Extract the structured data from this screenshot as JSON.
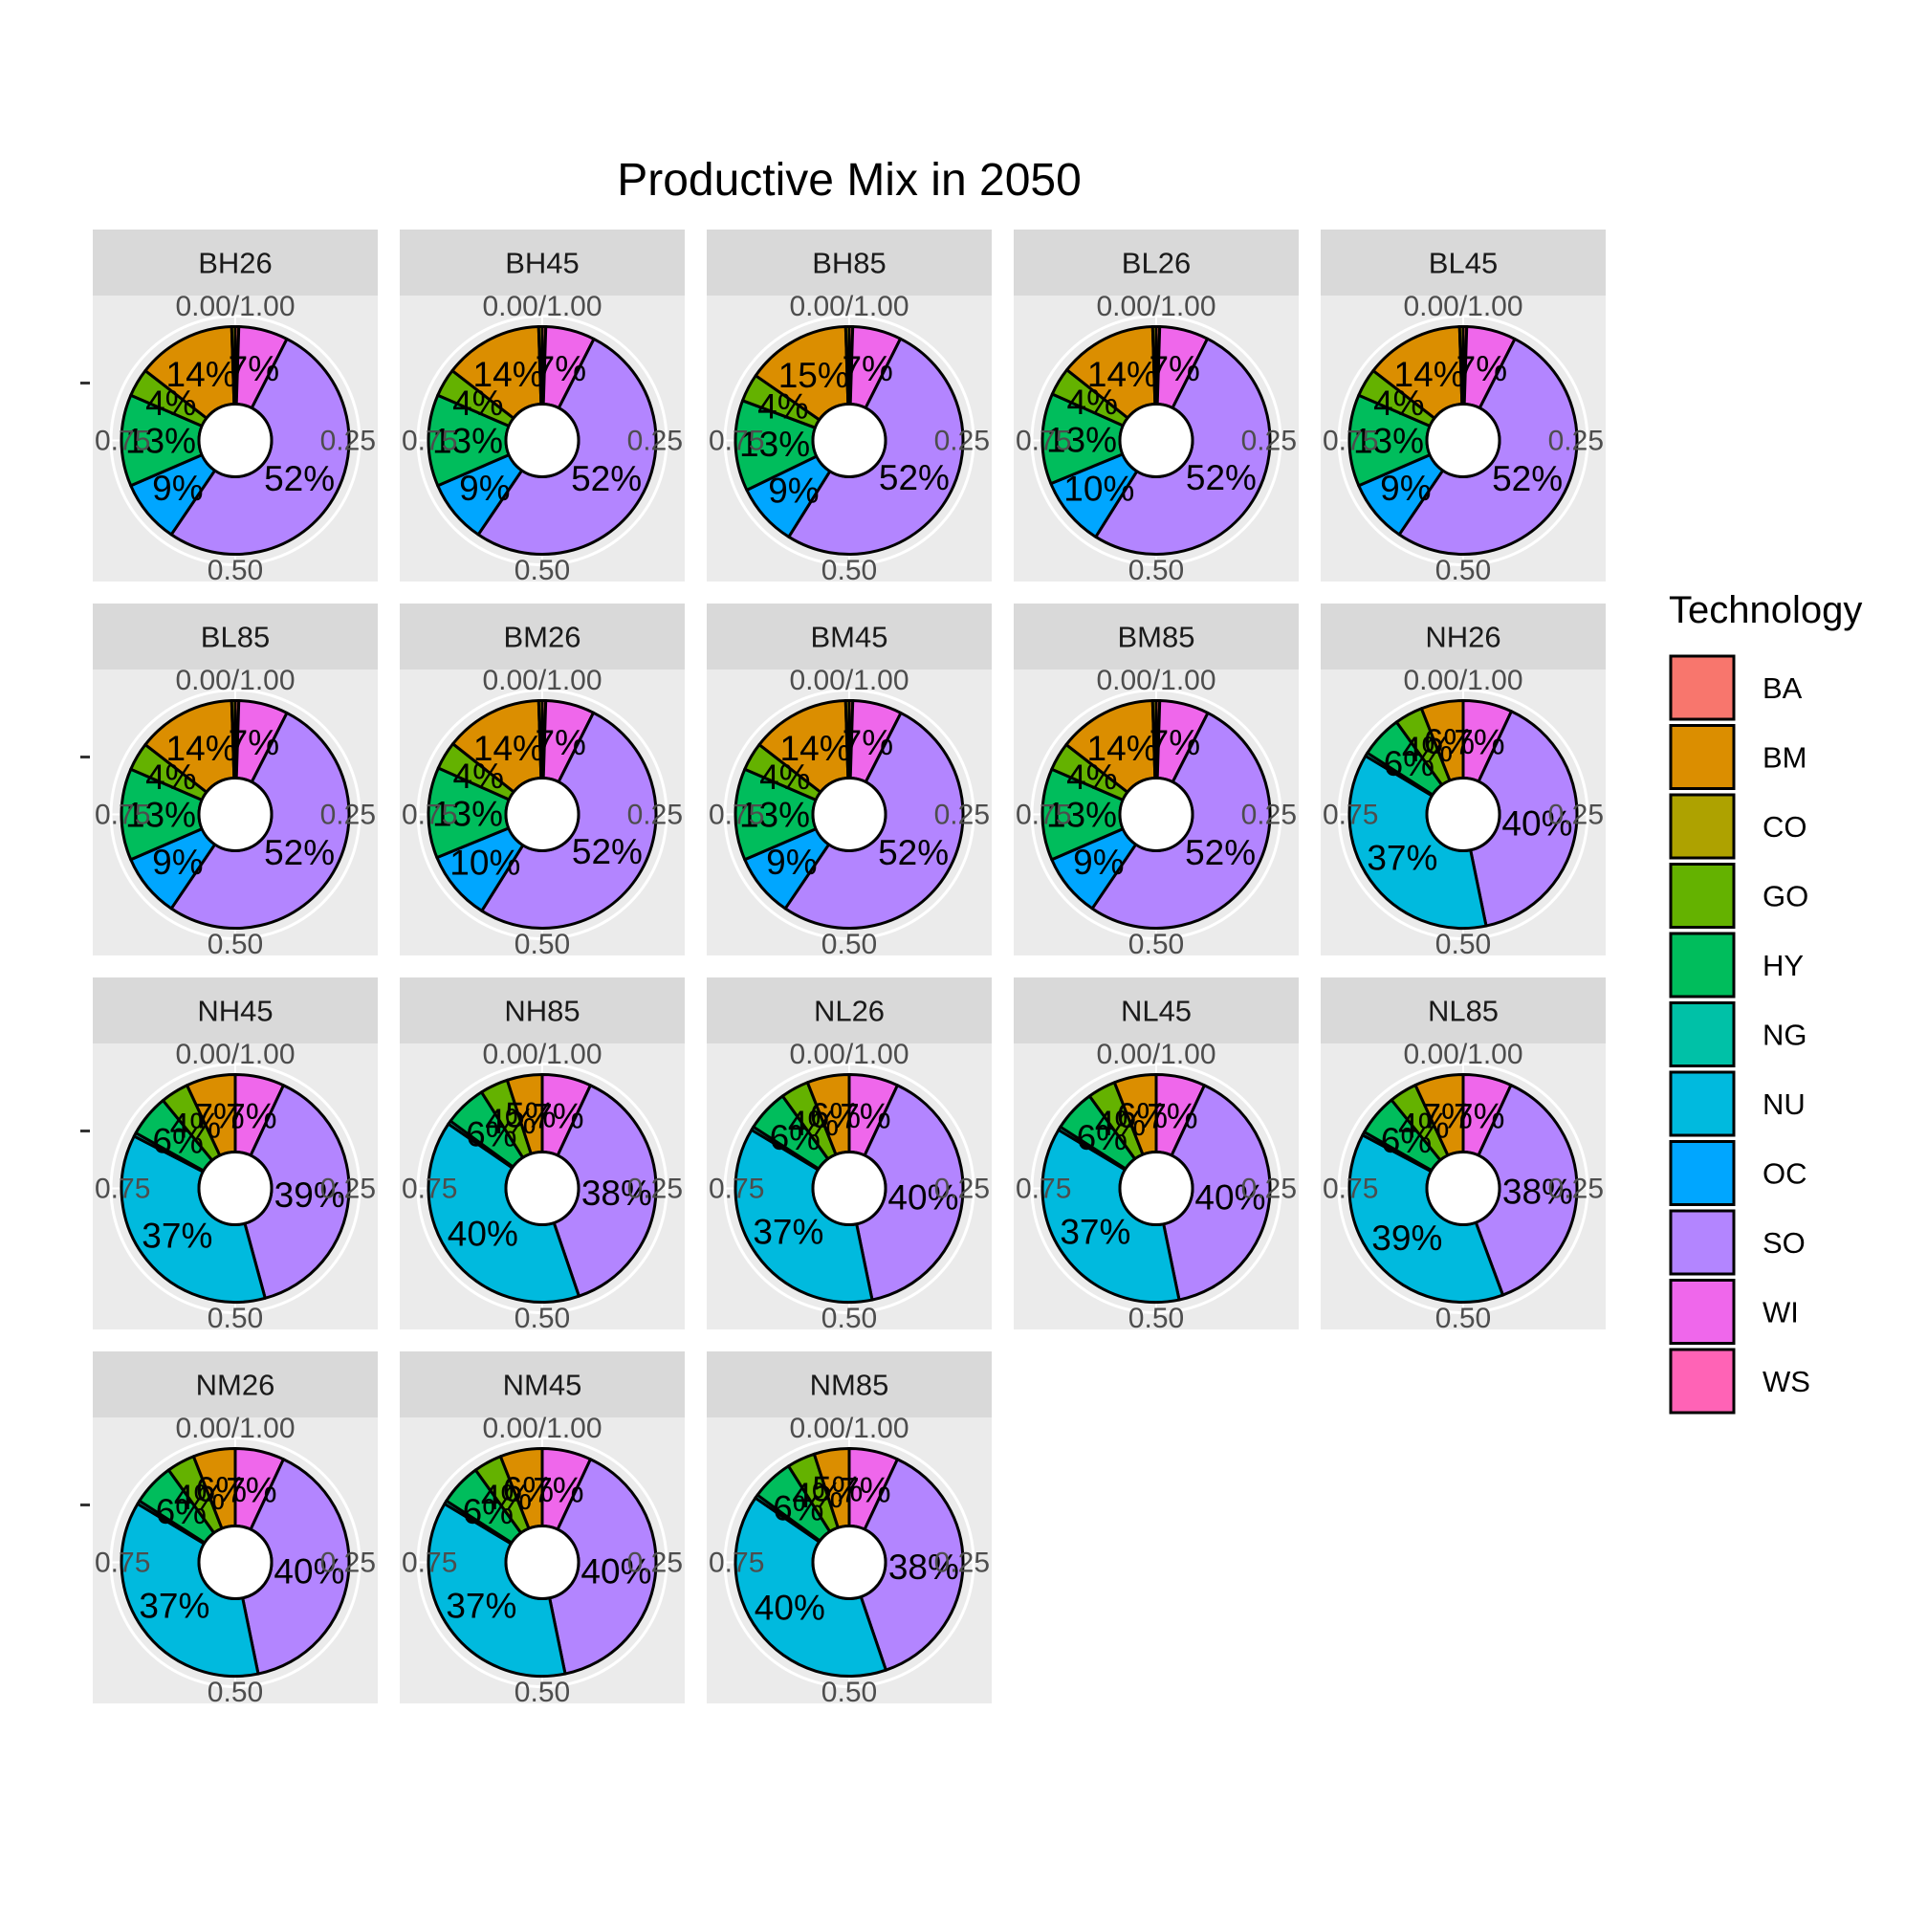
{
  "chart_data": {
    "type": "pie",
    "title": "Productive Mix in 2050",
    "subtitle": "",
    "xlabel": "",
    "ylabel": "",
    "axis_ticks": [
      "0.00/1.00",
      "0.25",
      "0.50",
      "0.75"
    ],
    "legend": {
      "title": "Technology",
      "position": "right",
      "items": [
        {
          "key": "BA",
          "color": "#F8766D"
        },
        {
          "key": "BM",
          "color": "#DB8E00"
        },
        {
          "key": "CO",
          "color": "#AEA200"
        },
        {
          "key": "GO",
          "color": "#64B200"
        },
        {
          "key": "HY",
          "color": "#00BD5C"
        },
        {
          "key": "NG",
          "color": "#00C1A7"
        },
        {
          "key": "NU",
          "color": "#00BADE"
        },
        {
          "key": "OC",
          "color": "#00A6FF"
        },
        {
          "key": "SO",
          "color": "#B385FF"
        },
        {
          "key": "WI",
          "color": "#EF67EB"
        },
        {
          "key": "WS",
          "color": "#FF63B6"
        }
      ]
    },
    "panels": [
      {
        "name": "BH26",
        "slices": [
          {
            "tech": "BA",
            "value": 0.5
          },
          {
            "tech": "WI",
            "value": 7,
            "label": "7%"
          },
          {
            "tech": "SO",
            "value": 52,
            "label": "52%"
          },
          {
            "tech": "OC",
            "value": 9,
            "label": "9%"
          },
          {
            "tech": "HY",
            "value": 13,
            "label": "13%"
          },
          {
            "tech": "GO",
            "value": 4,
            "label": "4%"
          },
          {
            "tech": "BM",
            "value": 14,
            "label": "14%"
          },
          {
            "tech": "CO",
            "value": 0.5
          }
        ]
      },
      {
        "name": "BH45",
        "slices": [
          {
            "tech": "BA",
            "value": 0.5
          },
          {
            "tech": "WI",
            "value": 7,
            "label": "7%"
          },
          {
            "tech": "SO",
            "value": 52,
            "label": "52%"
          },
          {
            "tech": "OC",
            "value": 9,
            "label": "9%"
          },
          {
            "tech": "HY",
            "value": 13,
            "label": "13%"
          },
          {
            "tech": "GO",
            "value": 4,
            "label": "4%"
          },
          {
            "tech": "BM",
            "value": 14,
            "label": "14%"
          },
          {
            "tech": "CO",
            "value": 0.5
          }
        ]
      },
      {
        "name": "BH85",
        "slices": [
          {
            "tech": "BA",
            "value": 0.5
          },
          {
            "tech": "WI",
            "value": 7,
            "label": "7%"
          },
          {
            "tech": "SO",
            "value": 52,
            "label": "52%"
          },
          {
            "tech": "OC",
            "value": 9,
            "label": "9%"
          },
          {
            "tech": "HY",
            "value": 13,
            "label": "13%"
          },
          {
            "tech": "GO",
            "value": 4,
            "label": "4%"
          },
          {
            "tech": "BM",
            "value": 15,
            "label": "15%"
          },
          {
            "tech": "CO",
            "value": 0.5
          }
        ]
      },
      {
        "name": "BL26",
        "slices": [
          {
            "tech": "BA",
            "value": 0.5
          },
          {
            "tech": "WI",
            "value": 7,
            "label": "7%"
          },
          {
            "tech": "SO",
            "value": 52,
            "label": "52%"
          },
          {
            "tech": "OC",
            "value": 10,
            "label": "10%"
          },
          {
            "tech": "HY",
            "value": 13,
            "label": "13%"
          },
          {
            "tech": "GO",
            "value": 4,
            "label": "4%"
          },
          {
            "tech": "BM",
            "value": 14,
            "label": "14%"
          },
          {
            "tech": "CO",
            "value": 0.5
          }
        ]
      },
      {
        "name": "BL45",
        "slices": [
          {
            "tech": "BA",
            "value": 0.5
          },
          {
            "tech": "WI",
            "value": 7,
            "label": "7%"
          },
          {
            "tech": "SO",
            "value": 52,
            "label": "52%"
          },
          {
            "tech": "OC",
            "value": 9,
            "label": "9%"
          },
          {
            "tech": "HY",
            "value": 13,
            "label": "13%"
          },
          {
            "tech": "GO",
            "value": 4,
            "label": "4%"
          },
          {
            "tech": "BM",
            "value": 14,
            "label": "14%"
          },
          {
            "tech": "CO",
            "value": 0.5
          }
        ]
      },
      {
        "name": "BL85",
        "slices": [
          {
            "tech": "BA",
            "value": 0.5
          },
          {
            "tech": "WI",
            "value": 7,
            "label": "7%"
          },
          {
            "tech": "SO",
            "value": 52,
            "label": "52%"
          },
          {
            "tech": "OC",
            "value": 9,
            "label": "9%"
          },
          {
            "tech": "HY",
            "value": 13,
            "label": "13%"
          },
          {
            "tech": "GO",
            "value": 4,
            "label": "4%"
          },
          {
            "tech": "BM",
            "value": 14,
            "label": "14%"
          },
          {
            "tech": "CO",
            "value": 0.5
          }
        ]
      },
      {
        "name": "BM26",
        "slices": [
          {
            "tech": "BA",
            "value": 0.5
          },
          {
            "tech": "WI",
            "value": 7,
            "label": "7%"
          },
          {
            "tech": "SO",
            "value": 52,
            "label": "52%"
          },
          {
            "tech": "OC",
            "value": 10,
            "label": "10%"
          },
          {
            "tech": "HY",
            "value": 13,
            "label": "13%"
          },
          {
            "tech": "GO",
            "value": 4,
            "label": "4%"
          },
          {
            "tech": "BM",
            "value": 14,
            "label": "14%"
          },
          {
            "tech": "CO",
            "value": 0.5
          }
        ]
      },
      {
        "name": "BM45",
        "slices": [
          {
            "tech": "BA",
            "value": 0.5
          },
          {
            "tech": "WI",
            "value": 7,
            "label": "7%"
          },
          {
            "tech": "SO",
            "value": 52,
            "label": "52%"
          },
          {
            "tech": "OC",
            "value": 9,
            "label": "9%"
          },
          {
            "tech": "HY",
            "value": 13,
            "label": "13%"
          },
          {
            "tech": "GO",
            "value": 4,
            "label": "4%"
          },
          {
            "tech": "BM",
            "value": 14,
            "label": "14%"
          },
          {
            "tech": "CO",
            "value": 0.5
          }
        ]
      },
      {
        "name": "BM85",
        "slices": [
          {
            "tech": "BA",
            "value": 0.5
          },
          {
            "tech": "WI",
            "value": 7,
            "label": "7%"
          },
          {
            "tech": "SO",
            "value": 52,
            "label": "52%"
          },
          {
            "tech": "OC",
            "value": 9,
            "label": "9%"
          },
          {
            "tech": "HY",
            "value": 13,
            "label": "13%"
          },
          {
            "tech": "GO",
            "value": 4,
            "label": "4%"
          },
          {
            "tech": "BM",
            "value": 14,
            "label": "14%"
          },
          {
            "tech": "CO",
            "value": 0.5
          }
        ]
      },
      {
        "name": "NH26",
        "slices": [
          {
            "tech": "WI",
            "value": 7,
            "label": "7%"
          },
          {
            "tech": "SO",
            "value": 40,
            "label": "40%"
          },
          {
            "tech": "NU",
            "value": 37,
            "label": "37%"
          },
          {
            "tech": "NG",
            "value": 0.5
          },
          {
            "tech": "HY",
            "value": 6,
            "label": "6%"
          },
          {
            "tech": "GO",
            "value": 4,
            "label": "4%"
          },
          {
            "tech": "BM",
            "value": 6,
            "label": "6%"
          }
        ]
      },
      {
        "name": "NH45",
        "slices": [
          {
            "tech": "WI",
            "value": 7,
            "label": "7%"
          },
          {
            "tech": "SO",
            "value": 39,
            "label": "39%"
          },
          {
            "tech": "NU",
            "value": 37,
            "label": "37%"
          },
          {
            "tech": "NG",
            "value": 0.5
          },
          {
            "tech": "HY",
            "value": 6,
            "label": "6%"
          },
          {
            "tech": "GO",
            "value": 4,
            "label": "4%"
          },
          {
            "tech": "BM",
            "value": 7,
            "label": "7%"
          }
        ]
      },
      {
        "name": "NH85",
        "slices": [
          {
            "tech": "WI",
            "value": 7,
            "label": "7%"
          },
          {
            "tech": "SO",
            "value": 38,
            "label": "38%"
          },
          {
            "tech": "NU",
            "value": 40,
            "label": "40%"
          },
          {
            "tech": "NG",
            "value": 0.5
          },
          {
            "tech": "HY",
            "value": 6,
            "label": "6%"
          },
          {
            "tech": "GO",
            "value": 4,
            "label": "4%"
          },
          {
            "tech": "BM",
            "value": 5,
            "label": "5%"
          }
        ]
      },
      {
        "name": "NL26",
        "slices": [
          {
            "tech": "WI",
            "value": 7,
            "label": "7%"
          },
          {
            "tech": "SO",
            "value": 40,
            "label": "40%"
          },
          {
            "tech": "NU",
            "value": 37,
            "label": "37%"
          },
          {
            "tech": "NG",
            "value": 0.5
          },
          {
            "tech": "HY",
            "value": 6,
            "label": "6%"
          },
          {
            "tech": "GO",
            "value": 4,
            "label": "4%"
          },
          {
            "tech": "BM",
            "value": 6,
            "label": "6%"
          }
        ]
      },
      {
        "name": "NL45",
        "slices": [
          {
            "tech": "WI",
            "value": 7,
            "label": "7%"
          },
          {
            "tech": "SO",
            "value": 40,
            "label": "40%"
          },
          {
            "tech": "NU",
            "value": 37,
            "label": "37%"
          },
          {
            "tech": "NG",
            "value": 0.5
          },
          {
            "tech": "HY",
            "value": 6,
            "label": "6%"
          },
          {
            "tech": "GO",
            "value": 4,
            "label": "4%"
          },
          {
            "tech": "BM",
            "value": 6,
            "label": "6%"
          }
        ]
      },
      {
        "name": "NL85",
        "slices": [
          {
            "tech": "WI",
            "value": 7,
            "label": "7%"
          },
          {
            "tech": "SO",
            "value": 38,
            "label": "38%"
          },
          {
            "tech": "NU",
            "value": 39,
            "label": "39%"
          },
          {
            "tech": "NG",
            "value": 0.5
          },
          {
            "tech": "HY",
            "value": 6,
            "label": "6%"
          },
          {
            "tech": "GO",
            "value": 4,
            "label": "4%"
          },
          {
            "tech": "BM",
            "value": 7,
            "label": "7%"
          }
        ]
      },
      {
        "name": "NM26",
        "slices": [
          {
            "tech": "WI",
            "value": 7,
            "label": "7%"
          },
          {
            "tech": "SO",
            "value": 40,
            "label": "40%"
          },
          {
            "tech": "NU",
            "value": 37,
            "label": "37%"
          },
          {
            "tech": "NG",
            "value": 0.5
          },
          {
            "tech": "HY",
            "value": 6,
            "label": "6%"
          },
          {
            "tech": "GO",
            "value": 4,
            "label": "4%"
          },
          {
            "tech": "BM",
            "value": 6,
            "label": "6%"
          }
        ]
      },
      {
        "name": "NM45",
        "slices": [
          {
            "tech": "WI",
            "value": 7,
            "label": "7%"
          },
          {
            "tech": "SO",
            "value": 40,
            "label": "40%"
          },
          {
            "tech": "NU",
            "value": 37,
            "label": "37%"
          },
          {
            "tech": "NG",
            "value": 0.5
          },
          {
            "tech": "HY",
            "value": 6,
            "label": "6%"
          },
          {
            "tech": "GO",
            "value": 4,
            "label": "4%"
          },
          {
            "tech": "BM",
            "value": 6,
            "label": "6%"
          }
        ]
      },
      {
        "name": "NM85",
        "slices": [
          {
            "tech": "WI",
            "value": 7,
            "label": "7%"
          },
          {
            "tech": "SO",
            "value": 38,
            "label": "38%"
          },
          {
            "tech": "NU",
            "value": 40,
            "label": "40%"
          },
          {
            "tech": "NG",
            "value": 0.5
          },
          {
            "tech": "HY",
            "value": 6,
            "label": "6%"
          },
          {
            "tech": "GO",
            "value": 4,
            "label": "4%"
          },
          {
            "tech": "BM",
            "value": 5,
            "label": "5%"
          }
        ]
      }
    ]
  }
}
